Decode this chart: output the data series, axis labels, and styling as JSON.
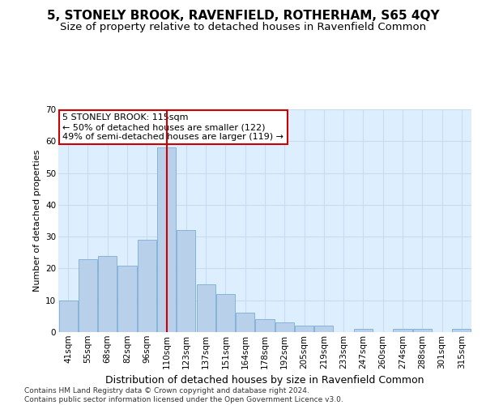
{
  "title": "5, STONELY BROOK, RAVENFIELD, ROTHERHAM, S65 4QY",
  "subtitle": "Size of property relative to detached houses in Ravenfield Common",
  "xlabel": "Distribution of detached houses by size in Ravenfield Common",
  "ylabel": "Number of detached properties",
  "footer_line1": "Contains HM Land Registry data © Crown copyright and database right 2024.",
  "footer_line2": "Contains public sector information licensed under the Open Government Licence v3.0.",
  "categories": [
    "41sqm",
    "55sqm",
    "68sqm",
    "82sqm",
    "96sqm",
    "110sqm",
    "123sqm",
    "137sqm",
    "151sqm",
    "164sqm",
    "178sqm",
    "192sqm",
    "205sqm",
    "219sqm",
    "233sqm",
    "247sqm",
    "260sqm",
    "274sqm",
    "288sqm",
    "301sqm",
    "315sqm"
  ],
  "values": [
    10,
    23,
    24,
    21,
    29,
    58,
    32,
    15,
    12,
    6,
    4,
    3,
    2,
    2,
    0,
    1,
    0,
    1,
    1,
    0,
    1
  ],
  "bar_color": "#b8d0ea",
  "bar_edge_color": "#7aadd4",
  "vline_x": 5,
  "vline_color": "#cc0000",
  "annotation_text": "5 STONELY BROOK: 115sqm\n← 50% of detached houses are smaller (122)\n49% of semi-detached houses are larger (119) →",
  "annotation_box_color": "#ffffff",
  "annotation_box_edge_color": "#cc0000",
  "ylim": [
    0,
    70
  ],
  "yticks": [
    0,
    10,
    20,
    30,
    40,
    50,
    60,
    70
  ],
  "grid_color": "#c8dcf0",
  "background_color": "#ddeeff",
  "title_fontsize": 11,
  "subtitle_fontsize": 9.5,
  "ylabel_fontsize": 8,
  "xlabel_fontsize": 9,
  "tick_fontsize": 7.5,
  "ann_fontsize": 8,
  "footer_fontsize": 6.5
}
